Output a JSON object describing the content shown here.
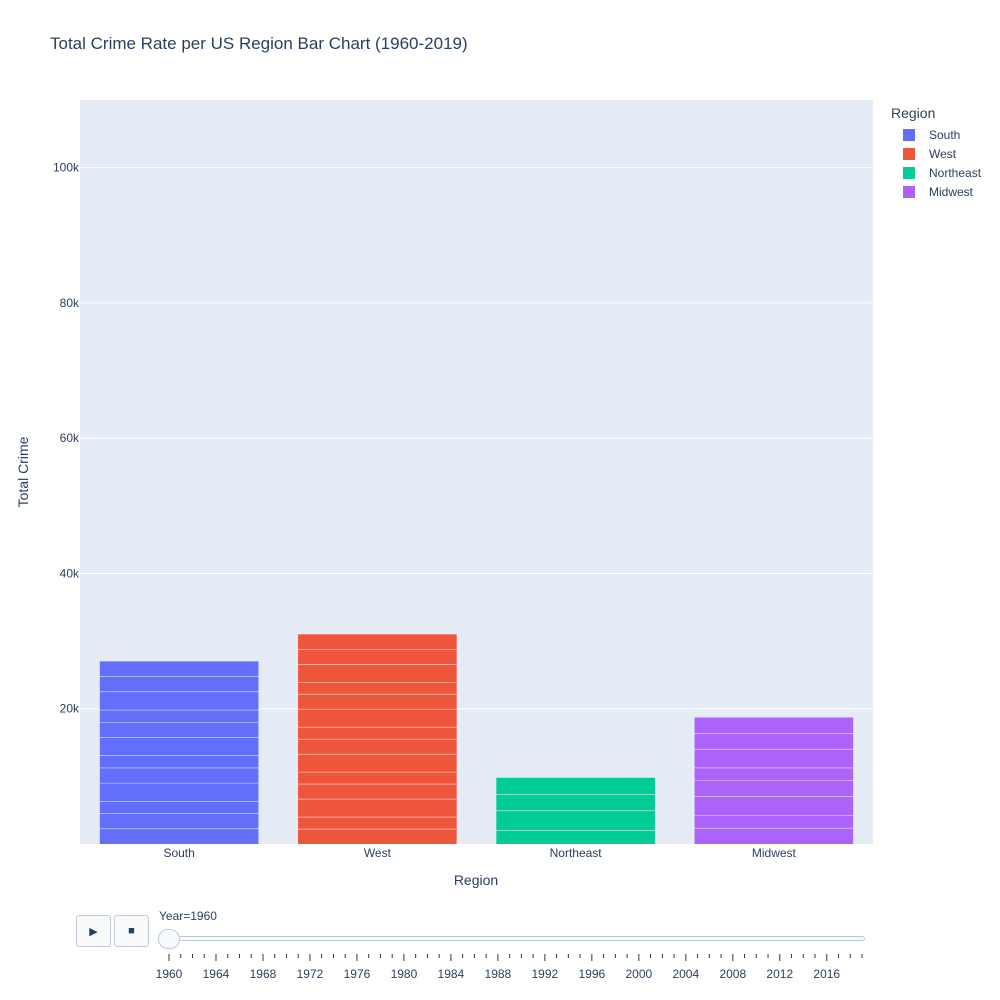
{
  "chart_data": {
    "type": "bar",
    "title": "Total Crime Rate per US Region Bar Chart (1960-2019)",
    "xlabel": "Region",
    "ylabel": "Total Crime",
    "ylim": [
      0,
      110000
    ],
    "y_ticks": [
      20000,
      40000,
      60000,
      80000,
      100000
    ],
    "y_tick_labels": [
      "20k",
      "40k",
      "60k",
      "80k",
      "100k"
    ],
    "categories": [
      "South",
      "West",
      "Northeast",
      "Midwest"
    ],
    "values": [
      27000,
      31000,
      9800,
      18700
    ],
    "grid": true,
    "legend_title": "Region",
    "legend_position": "top-right",
    "series": [
      {
        "name": "South",
        "color": "#636efa"
      },
      {
        "name": "West",
        "color": "#ef553b"
      },
      {
        "name": "Northeast",
        "color": "#00cc96"
      },
      {
        "name": "Midwest",
        "color": "#ab63fa"
      }
    ]
  },
  "animation": {
    "play_icon": "play-icon",
    "stop_icon": "stop-icon",
    "current_label": "Year=1960",
    "current_fraction": 0,
    "start_year": 1960,
    "end_year": 2019,
    "tick_labels": [
      "1960",
      "1964",
      "1968",
      "1972",
      "1976",
      "1980",
      "1984",
      "1988",
      "1992",
      "1996",
      "2000",
      "2004",
      "2008",
      "2012",
      "2016"
    ]
  }
}
